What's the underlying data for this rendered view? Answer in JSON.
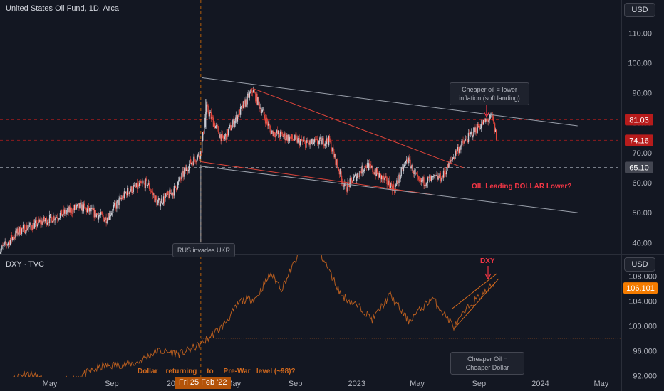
{
  "colors": {
    "bg": "#131722",
    "axis_text": "#b2b5be",
    "candle_up": "#c9ccd4",
    "candle_down": "#e0453a",
    "trend_red": "#e0453a",
    "trend_grey": "#9aa0ab",
    "dxy_line": "#d2691e",
    "accent_red": "#f23645",
    "tag_red": "#b71c1c",
    "tag_orange": "#f57c00",
    "tag_grey": "#434651"
  },
  "top": {
    "title": "United States Oil Fund, 1D, Arca",
    "currency": "USD"
  },
  "bottom": {
    "title": "DXY · TVC",
    "currency": "USD"
  },
  "annotations": {
    "oil_dxy": "OIL Leading DOLLAR Lower?",
    "dxy_label": "DXY",
    "dollar_return": "Dollar    returning     to     Pre-War   level (~98)?",
    "rus_ukr": "RUS invades UKR",
    "cheaper_inflation": "Cheaper oil = lower inflation (soft landing)",
    "cheaper_dollar": "Cheaper Oil = Cheaper Dollar",
    "date_highlight": "Fri 25 Feb '22"
  },
  "chart_data": [
    {
      "type": "candlestick",
      "title": "United States Oil Fund, 1D, Arca",
      "currency": "USD",
      "yticks": [
        40,
        50,
        60,
        70,
        80,
        90,
        100,
        110
      ],
      "ylim": [
        36.5,
        121
      ],
      "price_tags": [
        {
          "value": 81.03,
          "label": "81.03",
          "style": "red"
        },
        {
          "value": 74.16,
          "label": "74.16",
          "style": "red"
        },
        {
          "value": 65.1,
          "label": "65.10",
          "style": "grey"
        }
      ],
      "path_dates": [
        "2021-01-20",
        "2021-03-01",
        "2021-05-01",
        "2021-07-01",
        "2021-08-20",
        "2021-10-01",
        "2021-11-10",
        "2021-12-01",
        "2022-01-01",
        "2022-02-01",
        "2022-02-25",
        "2022-03-08",
        "2022-04-10",
        "2022-06-08",
        "2022-07-15",
        "2022-09-25",
        "2022-11-07",
        "2022-12-09",
        "2023-01-20",
        "2023-03-17",
        "2023-04-12",
        "2023-05-04",
        "2023-06-20",
        "2023-07-20",
        "2023-09-01",
        "2023-09-27",
        "2023-10-06"
      ],
      "path_values": [
        37,
        44,
        48,
        52,
        48,
        57,
        60,
        53,
        57,
        66,
        70,
        85,
        74,
        91,
        77,
        73,
        74,
        58,
        66,
        58,
        68,
        60,
        62,
        71,
        79,
        82,
        75
      ],
      "trendlines": [
        {
          "color": "grey",
          "from": [
            "2022-02-28",
            95
          ],
          "to": [
            "2024-03-15",
            79
          ]
        },
        {
          "color": "red",
          "from": [
            "2022-06-08",
            91.5
          ],
          "to": [
            "2023-08-01",
            65
          ]
        },
        {
          "color": "red",
          "from": [
            "2022-02-25",
            67
          ],
          "to": [
            "2023-06-01",
            56
          ]
        },
        {
          "color": "grey",
          "from": [
            "2022-02-25",
            65.5
          ],
          "to": [
            "2024-03-15",
            50
          ]
        }
      ]
    },
    {
      "type": "line",
      "title": "DXY · TVC",
      "currency": "USD",
      "yticks": [
        92,
        96,
        100,
        104,
        108
      ],
      "ylim": [
        91.8,
        111.5
      ],
      "price_tags": [
        {
          "value": 106.101,
          "label": "106.101",
          "style": "orange"
        }
      ],
      "x": [
        "2021-01-20",
        "2021-03-15",
        "2021-05-01",
        "2021-06-10",
        "2021-08-15",
        "2021-10-20",
        "2021-12-01",
        "2022-01-15",
        "2022-02-25",
        "2022-04-10",
        "2022-05-15",
        "2022-06-15",
        "2022-07-14",
        "2022-08-05",
        "2022-09-27",
        "2022-10-25",
        "2022-12-01",
        "2023-01-15",
        "2023-02-01",
        "2023-03-08",
        "2023-04-14",
        "2023-05-31",
        "2023-07-14",
        "2023-08-15",
        "2023-09-15",
        "2023-10-03"
      ],
      "values": [
        90.5,
        92.5,
        90.8,
        91.3,
        93.5,
        94,
        96,
        95.5,
        97,
        100,
        104,
        104.5,
        108.5,
        106,
        114.8,
        111,
        105,
        102.5,
        101,
        105,
        100.8,
        104.5,
        99.8,
        103.5,
        105.5,
        107
      ],
      "reference_line": 98
    }
  ],
  "xaxis": {
    "ticks": [
      {
        "date": "2021-05-01",
        "label": "May"
      },
      {
        "date": "2021-09-01",
        "label": "Sep"
      },
      {
        "date": "2022-01-01",
        "label": "202"
      },
      {
        "date": "2022-05-01",
        "label": "May"
      },
      {
        "date": "2022-09-01",
        "label": "Sep"
      },
      {
        "date": "2023-01-01",
        "label": "2023"
      },
      {
        "date": "2023-05-01",
        "label": "May"
      },
      {
        "date": "2023-09-01",
        "label": "Sep"
      },
      {
        "date": "2024-01-01",
        "label": "2024"
      },
      {
        "date": "2024-05-01",
        "label": "May"
      }
    ],
    "event_date": "2022-02-25"
  }
}
